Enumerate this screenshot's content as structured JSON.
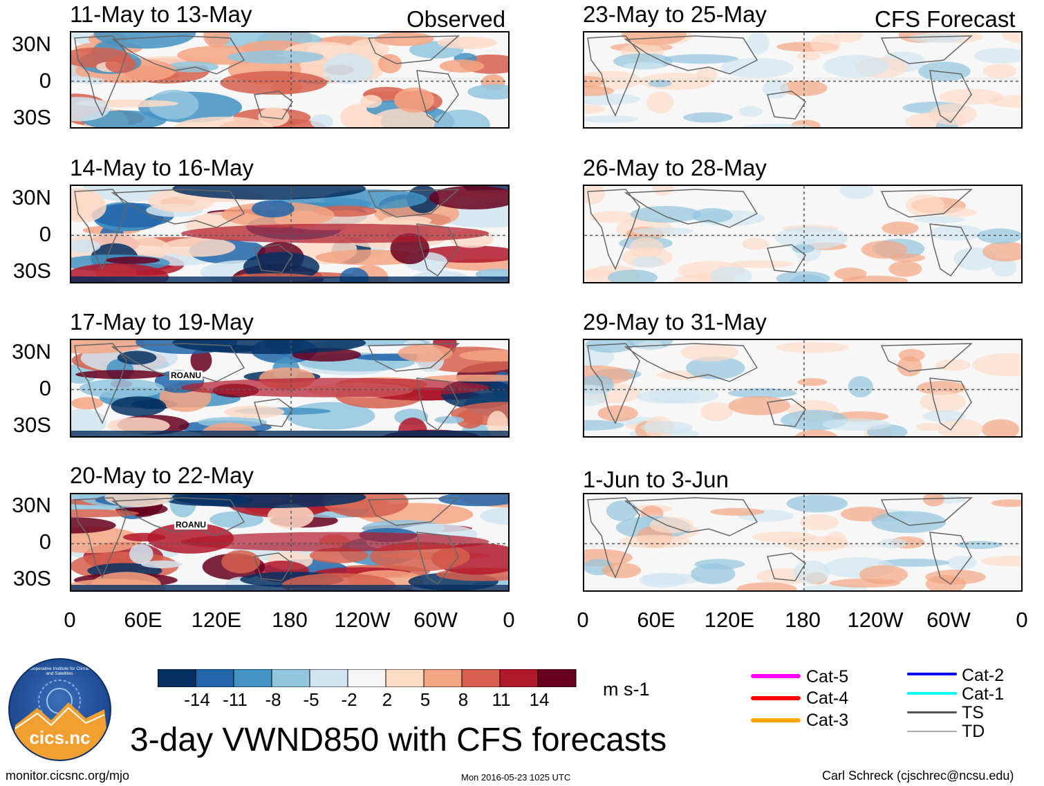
{
  "chart_data": {
    "type": "heatmap",
    "title": "3-day VWND850 with CFS forecasts",
    "variable": "850 hPa meridional wind",
    "units": "m s-1",
    "column_titles": [
      "Observed",
      "CFS Forecast"
    ],
    "colorbar": {
      "ticks": [
        "-14",
        "-11",
        "-8",
        "-5",
        "-2",
        "2",
        "5",
        "8",
        "11",
        "14"
      ],
      "colors": [
        "#053061",
        "#2166ac",
        "#4393c3",
        "#92c5de",
        "#d1e5f0",
        "#f7f7f7",
        "#fddbc7",
        "#f4a582",
        "#d6604d",
        "#b2182b",
        "#67001f"
      ]
    },
    "y_ticks": [
      "30N",
      "0",
      "30S"
    ],
    "x_ticks": [
      "0",
      "60E",
      "120E",
      "180",
      "120W",
      "60W",
      "0"
    ],
    "panels": [
      {
        "period": "11-May to 13-May",
        "source": "Observed",
        "storms": []
      },
      {
        "period": "14-May to 16-May",
        "source": "Observed",
        "storms": []
      },
      {
        "period": "17-May to 19-May",
        "source": "Observed",
        "storms": [
          {
            "name": "ROANU"
          }
        ]
      },
      {
        "period": "20-May to 22-May",
        "source": "Observed",
        "storms": [
          {
            "name": "ROANU"
          }
        ]
      },
      {
        "period": "23-May to 25-May",
        "source": "CFS Forecast",
        "storms": []
      },
      {
        "period": "26-May to 28-May",
        "source": "CFS Forecast",
        "storms": []
      },
      {
        "period": "29-May to 31-May",
        "source": "CFS Forecast",
        "storms": []
      },
      {
        "period": "1-Jun to 3-Jun",
        "source": "CFS Forecast",
        "storms": []
      }
    ],
    "storm_legend": [
      {
        "label": "Cat-5",
        "color": "#ff00ff"
      },
      {
        "label": "Cat-4",
        "color": "#ff0000"
      },
      {
        "label": "Cat-3",
        "color": "#ffa500"
      },
      {
        "label": "Cat-2",
        "color": "#0000ff"
      },
      {
        "label": "Cat-1",
        "color": "#00ffff"
      },
      {
        "label": "TS",
        "color": "#555555"
      },
      {
        "label": "TD",
        "color": "#aaaaaa"
      }
    ]
  },
  "logo": {
    "text": "cics.nc",
    "ring_text": "Cooperative Institute for Climate and Satellites"
  },
  "footer": {
    "site": "monitor.cicsnc.org/mjo",
    "timestamp": "Mon 2016-05-23 1025 UTC",
    "author": "Carl Schreck (cjschrec@ncsu.edu)"
  }
}
